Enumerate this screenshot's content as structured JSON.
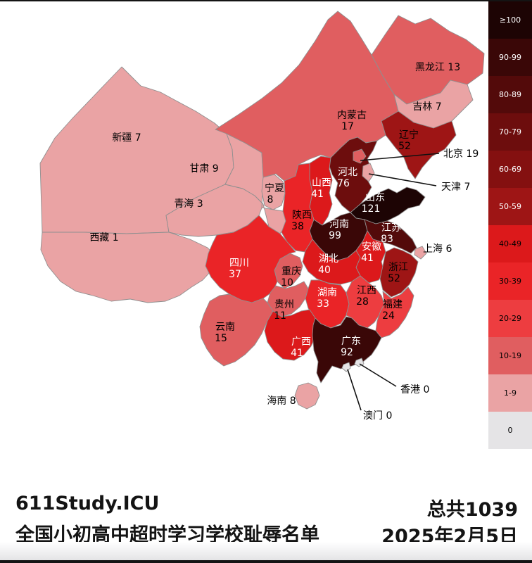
{
  "legend": {
    "buckets": [
      {
        "label": "≥100",
        "color": "#1d0404",
        "text_color": "#ffffff"
      },
      {
        "label": "90-99",
        "color": "#3a0707",
        "text_color": "#ffffff"
      },
      {
        "label": "80-89",
        "color": "#530a0a",
        "text_color": "#ffffff"
      },
      {
        "label": "70-79",
        "color": "#6d0d0d",
        "text_color": "#ffffff"
      },
      {
        "label": "60-69",
        "color": "#841010",
        "text_color": "#ffffff"
      },
      {
        "label": "50-59",
        "color": "#9e1515",
        "text_color": "#ffffff"
      },
      {
        "label": "40-49",
        "color": "#dc191b",
        "text_color": "#000000"
      },
      {
        "label": "30-39",
        "color": "#ea2427",
        "text_color": "#000000"
      },
      {
        "label": "20-29",
        "color": "#ed3d40",
        "text_color": "#000000"
      },
      {
        "label": "10-19",
        "color": "#e05e60",
        "text_color": "#000000"
      },
      {
        "label": "1-9",
        "color": "#eaa3a4",
        "text_color": "#000000"
      },
      {
        "label": "0",
        "color": "#e5e4e6",
        "text_color": "#000000"
      }
    ]
  },
  "map": {
    "provinces": [
      {
        "id": "xinjiang",
        "name": "新疆",
        "value": 7,
        "bucket": "1-9",
        "label": "inline",
        "label_color": "#000000"
      },
      {
        "id": "xizang",
        "name": "西藏",
        "value": 1,
        "bucket": "1-9",
        "label": "inline",
        "label_color": "#000000"
      },
      {
        "id": "qinghai",
        "name": "青海",
        "value": 3,
        "bucket": "1-9",
        "label": "inline",
        "label_color": "#000000"
      },
      {
        "id": "gansu",
        "name": "甘肃",
        "value": 9,
        "bucket": "1-9",
        "label": "inline",
        "label_color": "#000000"
      },
      {
        "id": "ningxia",
        "name": "宁夏",
        "value": 8,
        "bucket": "1-9",
        "label": "stacked",
        "label_color": "#000000"
      },
      {
        "id": "neimenggu",
        "name": "内蒙古",
        "value": 17,
        "bucket": "10-19",
        "label": "stacked",
        "label_color": "#000000"
      },
      {
        "id": "heilongjiang",
        "name": "黑龙江",
        "value": 13,
        "bucket": "10-19",
        "label": "inline",
        "label_color": "#000000"
      },
      {
        "id": "jilin",
        "name": "吉林",
        "value": 7,
        "bucket": "1-9",
        "label": "inline",
        "label_color": "#000000"
      },
      {
        "id": "liaoning",
        "name": "辽宁",
        "value": 52,
        "bucket": "50-59",
        "label": "stacked",
        "label_color": "#000000"
      },
      {
        "id": "beijing",
        "name": "北京",
        "value": 19,
        "bucket": "10-19",
        "label": "callout",
        "label_color": "#000000"
      },
      {
        "id": "tianjin",
        "name": "天津",
        "value": 7,
        "bucket": "1-9",
        "label": "callout",
        "label_color": "#000000"
      },
      {
        "id": "hebei",
        "name": "河北",
        "value": 76,
        "bucket": "70-79",
        "label": "stacked",
        "label_color": "#ffffff"
      },
      {
        "id": "shanxi",
        "name": "山西",
        "value": 41,
        "bucket": "40-49",
        "label": "stacked",
        "label_color": "#ffffff"
      },
      {
        "id": "shandong",
        "name": "山东",
        "value": 121,
        "bucket": "≥100",
        "label": "stacked",
        "label_color": "#ffffff"
      },
      {
        "id": "henan",
        "name": "河南",
        "value": 99,
        "bucket": "90-99",
        "label": "stacked",
        "label_color": "#ffffff"
      },
      {
        "id": "shaanxi",
        "name": "陕西",
        "value": 38,
        "bucket": "30-39",
        "label": "stacked",
        "label_color": "#000000"
      },
      {
        "id": "jiangsu",
        "name": "江苏",
        "value": 83,
        "bucket": "80-89",
        "label": "stacked",
        "label_color": "#ffffff"
      },
      {
        "id": "anhui",
        "name": "安徽",
        "value": 41,
        "bucket": "40-49",
        "label": "stacked",
        "label_color": "#ffffff"
      },
      {
        "id": "shanghai",
        "name": "上海",
        "value": 6,
        "bucket": "1-9",
        "label": "callout",
        "label_color": "#000000"
      },
      {
        "id": "zhejiang",
        "name": "浙江",
        "value": 52,
        "bucket": "50-59",
        "label": "stacked",
        "label_color": "#000000"
      },
      {
        "id": "hubei",
        "name": "湖北",
        "value": 40,
        "bucket": "40-49",
        "label": "stacked",
        "label_color": "#ffffff"
      },
      {
        "id": "chongqing",
        "name": "重庆",
        "value": 10,
        "bucket": "10-19",
        "label": "stacked",
        "label_color": "#000000"
      },
      {
        "id": "sichuan",
        "name": "四川",
        "value": 37,
        "bucket": "30-39",
        "label": "stacked",
        "label_color": "#ffffff"
      },
      {
        "id": "hunan",
        "name": "湖南",
        "value": 33,
        "bucket": "30-39",
        "label": "stacked",
        "label_color": "#ffffff"
      },
      {
        "id": "jiangxi",
        "name": "江西",
        "value": 28,
        "bucket": "20-29",
        "label": "stacked",
        "label_color": "#000000"
      },
      {
        "id": "fujian",
        "name": "福建",
        "value": 24,
        "bucket": "20-29",
        "label": "stacked",
        "label_color": "#000000"
      },
      {
        "id": "guizhou",
        "name": "贵州",
        "value": 11,
        "bucket": "10-19",
        "label": "stacked",
        "label_color": "#000000"
      },
      {
        "id": "yunnan",
        "name": "云南",
        "value": 15,
        "bucket": "10-19",
        "label": "stacked",
        "label_color": "#000000"
      },
      {
        "id": "guangxi",
        "name": "广西",
        "value": 41,
        "bucket": "40-49",
        "label": "stacked",
        "label_color": "#ffffff"
      },
      {
        "id": "guangdong",
        "name": "广东",
        "value": 92,
        "bucket": "90-99",
        "label": "stacked",
        "label_color": "#ffffff"
      },
      {
        "id": "hainan",
        "name": "海南",
        "value": 8,
        "bucket": "1-9",
        "label": "inline",
        "label_color": "#000000"
      },
      {
        "id": "hongkong",
        "name": "香港",
        "value": 0,
        "bucket": "0",
        "label": "callout",
        "label_color": "#000000"
      },
      {
        "id": "macau",
        "name": "澳门",
        "value": 0,
        "bucket": "0",
        "label": "callout",
        "label_color": "#000000"
      }
    ]
  },
  "footer": {
    "brand": "611Study.ICU",
    "subtitle": "全国小初高中超时学习学校耻辱名单",
    "total": "总共1039",
    "date": "2025年2月5日"
  }
}
